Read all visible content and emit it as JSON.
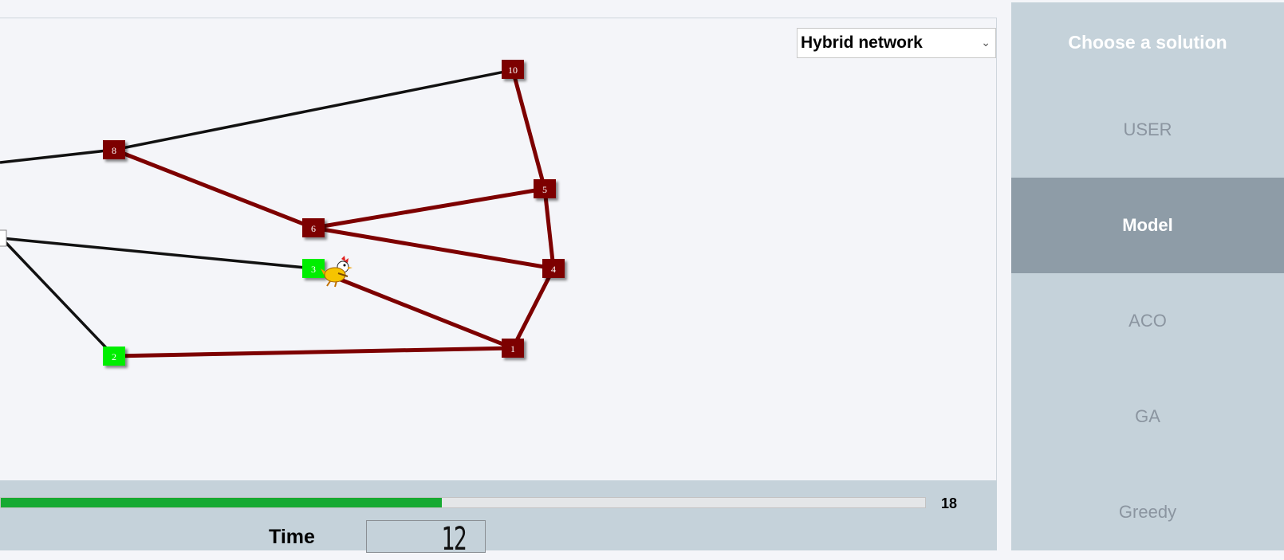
{
  "network_select": {
    "value": "Hybrid network"
  },
  "graph": {
    "nodes": [
      {
        "id": "10",
        "label": "10",
        "color": "#7d0000"
      },
      {
        "id": "8",
        "label": "8",
        "color": "#7d0000"
      },
      {
        "id": "5",
        "label": "5",
        "color": "#7d0000"
      },
      {
        "id": "6",
        "label": "6",
        "color": "#7d0000"
      },
      {
        "id": "3",
        "label": "3",
        "color": "#00ee00"
      },
      {
        "id": "4",
        "label": "4",
        "color": "#7d0000"
      },
      {
        "id": "1",
        "label": "1",
        "color": "#7d0000"
      },
      {
        "id": "2",
        "label": "2",
        "color": "#00ee00"
      }
    ],
    "edge_colors": {
      "route": "#7d0000",
      "plain": "#111111"
    }
  },
  "progress": {
    "value": 18,
    "fraction": 0.477
  },
  "time": {
    "label": "Time",
    "value": "12"
  },
  "sidebar": {
    "title": "Choose a solution",
    "items": [
      {
        "label": "USER",
        "active": false
      },
      {
        "label": "Model",
        "active": true
      },
      {
        "label": "ACO",
        "active": false
      },
      {
        "label": "GA",
        "active": false
      },
      {
        "label": "Greedy",
        "active": false
      }
    ]
  }
}
